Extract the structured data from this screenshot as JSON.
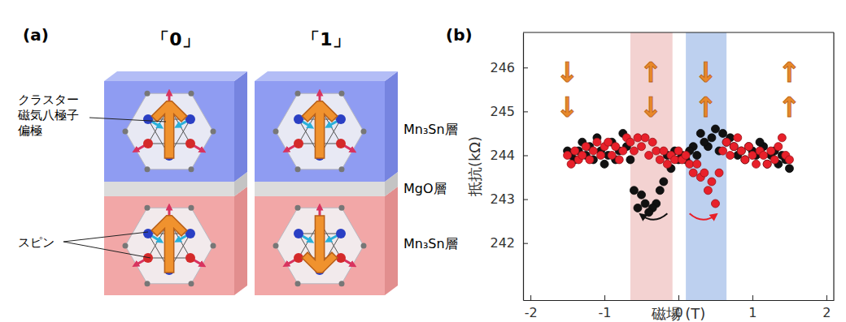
{
  "diagram": {
    "panel_label": "(a)",
    "states": [
      {
        "label": "「0」",
        "arrows": [
          "↑",
          "↑"
        ]
      },
      {
        "label": "「1」",
        "arrows": [
          "↑",
          "↓"
        ]
      }
    ],
    "layers": [
      "Mn₃Sn層",
      "MgO層",
      "Mn₃Sn層"
    ],
    "callouts": [
      {
        "lines": [
          "クラスター",
          "磁気八極子",
          "偏極"
        ]
      },
      {
        "lines": [
          "スピン"
        ]
      }
    ]
  },
  "chart_data": {
    "type": "scatter",
    "panel_label": "(b)",
    "x_label": "磁場 (T)",
    "y_label": "抵抗(kΩ)",
    "xlim": [
      -2.1,
      2.1
    ],
    "ylim": [
      240.7,
      246.8
    ],
    "xticks": [
      -2,
      -1,
      0,
      1,
      2
    ],
    "yticks": [
      242,
      243,
      244,
      245,
      246
    ],
    "grid": false,
    "bands": [
      {
        "x": [
          -0.65,
          -0.08
        ],
        "color": "#efc3c1"
      },
      {
        "x": [
          0.1,
          0.65
        ],
        "color": "#a7c0ea"
      }
    ],
    "annotations": [
      {
        "x": -1.5,
        "y": [
          245.9,
          245.1
        ],
        "texts": [
          "↓",
          "↓"
        ],
        "color": "#e8892a"
      },
      {
        "x": -0.37,
        "y": [
          245.9,
          245.1
        ],
        "texts": [
          "↑",
          "↓"
        ],
        "color": "#e8892a"
      },
      {
        "x": 0.37,
        "y": [
          245.9,
          245.1
        ],
        "texts": [
          "↓",
          "↑"
        ],
        "color": "#e8892a"
      },
      {
        "x": 1.5,
        "y": [
          245.9,
          245.1
        ],
        "texts": [
          "↑",
          "↑"
        ],
        "color": "#e8892a"
      }
    ],
    "series": [
      {
        "color": "#111111",
        "marker": "circle",
        "sweep": {
          "x": [
            -0.15,
            -0.5
          ],
          "y": 242.6
        },
        "x": [
          1.5,
          1.45,
          1.4,
          1.35,
          1.3,
          1.25,
          1.2,
          1.15,
          1.1,
          1.05,
          1.0,
          0.95,
          0.9,
          0.85,
          0.8,
          0.75,
          0.7,
          0.65,
          0.6,
          0.55,
          0.5,
          0.45,
          0.4,
          0.35,
          0.3,
          0.25,
          0.2,
          0.15,
          0.1,
          0.05,
          0.0,
          -0.05,
          -0.1,
          -0.15,
          -0.2,
          -0.25,
          -0.3,
          -0.35,
          -0.4,
          -0.45,
          -0.5,
          -0.55,
          -0.6,
          -0.65,
          -0.7,
          -0.75,
          -0.8,
          -0.85,
          -0.9,
          -0.95,
          -1.0,
          -1.05,
          -1.1,
          -1.15,
          -1.2,
          -1.25,
          -1.3,
          -1.35,
          -1.4,
          -1.45,
          -1.5
        ],
        "values": [
          243.7,
          243.9,
          244.0,
          243.8,
          244.1,
          244.0,
          243.8,
          244.2,
          244.3,
          244.0,
          244.1,
          244.2,
          243.9,
          244.1,
          244.0,
          244.2,
          244.4,
          244.3,
          244.5,
          244.1,
          244.6,
          244.4,
          244.2,
          244.3,
          244.5,
          244.0,
          244.2,
          244.1,
          243.9,
          244.0,
          243.9,
          244.1,
          243.7,
          244.0,
          243.4,
          243.2,
          242.9,
          242.8,
          242.7,
          242.9,
          243.1,
          242.8,
          243.2,
          243.9,
          244.2,
          244.5,
          244.1,
          243.9,
          244.3,
          244.0,
          243.8,
          244.1,
          244.4,
          243.9,
          244.2,
          244.0,
          244.3,
          244.1,
          243.9,
          244.0,
          244.1
        ]
      },
      {
        "color": "#e8202a",
        "marker": "circle",
        "sweep": {
          "x": [
            0.15,
            0.5
          ],
          "y": 242.6
        },
        "x": [
          -1.5,
          -1.45,
          -1.4,
          -1.35,
          -1.3,
          -1.25,
          -1.2,
          -1.15,
          -1.1,
          -1.05,
          -1.0,
          -0.95,
          -0.9,
          -0.85,
          -0.8,
          -0.75,
          -0.7,
          -0.65,
          -0.6,
          -0.55,
          -0.5,
          -0.45,
          -0.4,
          -0.35,
          -0.3,
          -0.25,
          -0.2,
          -0.15,
          -0.1,
          -0.05,
          0.0,
          0.05,
          0.1,
          0.15,
          0.2,
          0.25,
          0.3,
          0.35,
          0.4,
          0.45,
          0.5,
          0.55,
          0.6,
          0.65,
          0.7,
          0.75,
          0.8,
          0.85,
          0.9,
          0.95,
          1.0,
          1.05,
          1.1,
          1.15,
          1.2,
          1.25,
          1.3,
          1.35,
          1.4,
          1.45,
          1.5
        ],
        "values": [
          244.0,
          243.8,
          244.1,
          243.9,
          244.0,
          244.2,
          243.9,
          244.1,
          244.3,
          244.0,
          244.2,
          244.3,
          244.0,
          244.2,
          243.9,
          244.1,
          244.4,
          244.3,
          244.1,
          244.4,
          244.2,
          244.4,
          244.0,
          244.3,
          244.1,
          243.9,
          244.1,
          243.8,
          244.0,
          243.9,
          244.1,
          243.9,
          244.0,
          243.8,
          243.6,
          243.8,
          243.5,
          243.6,
          243.2,
          243.4,
          242.9,
          243.6,
          244.1,
          244.3,
          244.0,
          244.2,
          244.4,
          244.1,
          243.9,
          244.2,
          244.0,
          243.8,
          244.1,
          244.0,
          243.8,
          244.1,
          243.9,
          244.2,
          244.4,
          244.0,
          243.9
        ]
      }
    ]
  }
}
